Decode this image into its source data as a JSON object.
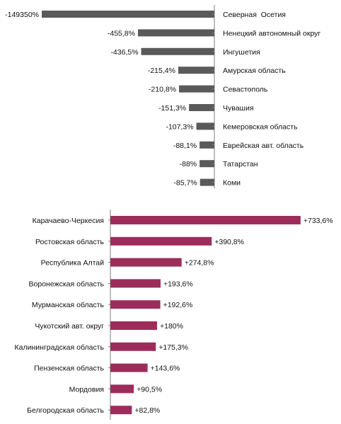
{
  "colors": {
    "negative_bar": "#5a5a5a",
    "positive_bar": "#9c2d5b",
    "axis": "#7f7f7f"
  },
  "chart_data": [
    {
      "type": "bar",
      "orientation": "horizontal",
      "categories": [
        "Северная  Осетия",
        "Ненецкий автономный округ",
        "Ингушетия",
        "Амурская область",
        "Севастополь",
        "Чувашия",
        "Кемеровская область",
        "Еврейская авт. область",
        "Татарстан",
        "Коми"
      ],
      "values": [
        -149350,
        -455.8,
        -436.5,
        -215.4,
        -210.8,
        -151.3,
        -107.3,
        -88.1,
        -88,
        -85.7
      ],
      "value_labels": [
        "-149350%",
        "-455,8%",
        "-436,5%",
        "-215,4%",
        "-210,8%",
        "-151,3%",
        "-107,3%",
        "-88,1%",
        "-88%",
        "-85,7%"
      ],
      "axis_break_on_first_bar": true,
      "category_label_side": "right",
      "bar_color": "#5a5a5a"
    },
    {
      "type": "bar",
      "orientation": "horizontal",
      "categories": [
        "Карачаево-Черкесия",
        "Ростовская область",
        "Республика Алтай",
        "Воронежская область",
        "Мурманская область",
        "Чукотский авт. округ",
        "Калининградская область",
        "Пензенская область",
        "Мордовия",
        "Белгородская область"
      ],
      "values": [
        733.6,
        390.8,
        274.8,
        193.6,
        192.6,
        180,
        175.3,
        143.6,
        90.5,
        82.8
      ],
      "value_labels": [
        "+733,6%",
        "+390,8%",
        "+274,8%",
        "+193,6%",
        "+192,6%",
        "+180%",
        "+175,3%",
        "+143,6%",
        "+90,5%",
        "+82,8%"
      ],
      "category_label_side": "left",
      "bar_color": "#9c2d5b"
    }
  ]
}
